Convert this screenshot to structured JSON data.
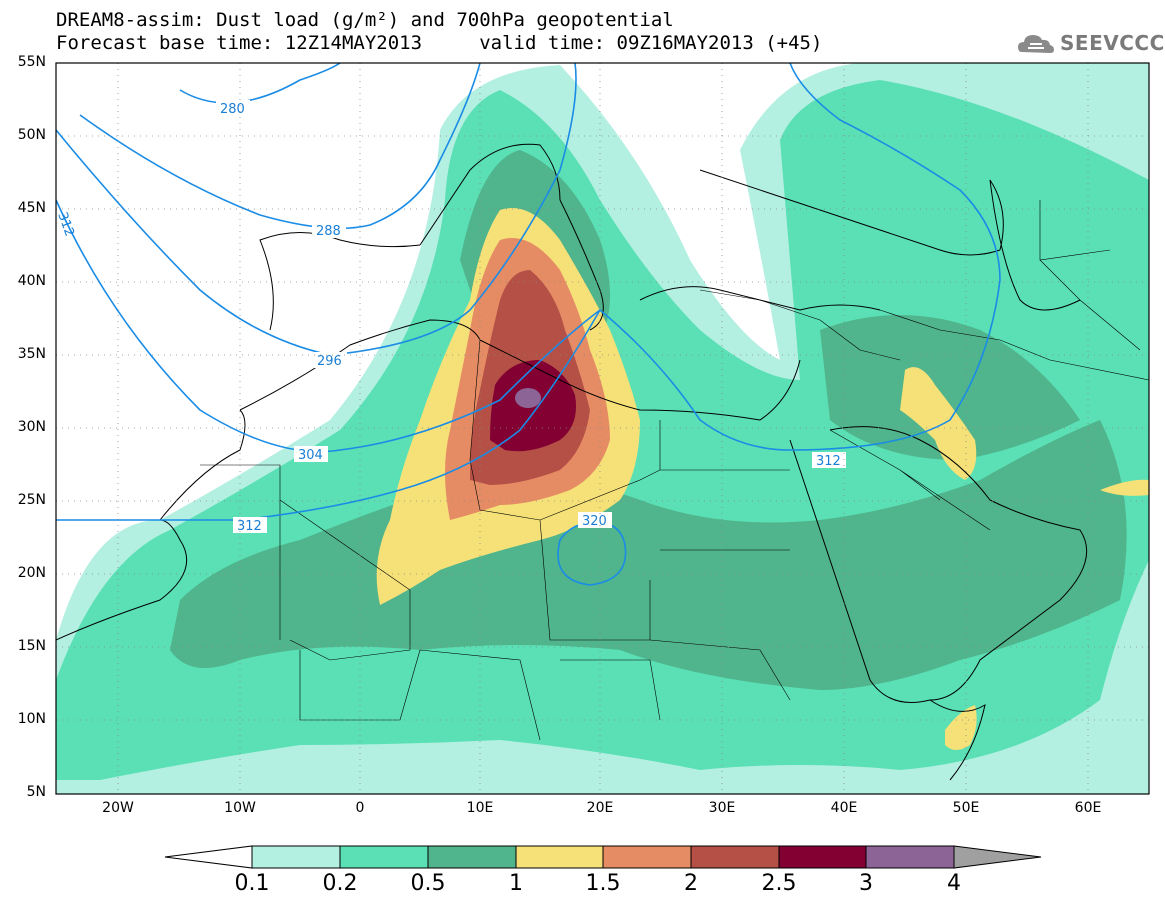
{
  "header": {
    "title_line1": "DREAM8-assim: Dust load (g/m²) and 700hPa geopotential",
    "title_line2": "Forecast base time: 12Z14MAY2013     valid time: 09Z16MAY2013 (+45)"
  },
  "logo": {
    "text": "SEEVCCC",
    "icon": "cloud-logo-icon"
  },
  "map": {
    "lat_labels": [
      "55N",
      "50N",
      "45N",
      "40N",
      "35N",
      "30N",
      "25N",
      "20N",
      "15N",
      "10N",
      "5N"
    ],
    "lon_labels": [
      "20W",
      "10W",
      "0",
      "10E",
      "20E",
      "30E",
      "40E",
      "50E",
      "60E"
    ],
    "contour_labels": [
      "280",
      "288",
      "296",
      "304",
      "312",
      "312",
      "312",
      "320"
    ]
  },
  "colorbar": {
    "ticks": [
      "0.1",
      "0.2",
      "0.5",
      "1",
      "1.5",
      "2",
      "2.5",
      "3",
      "4"
    ],
    "colors": [
      "#b4f0e1",
      "#5ae0b4",
      "#50b48c",
      "#f5e178",
      "#e68c64",
      "#b45046",
      "#820032",
      "#8c6496"
    ],
    "under_color": "#ffffff",
    "over_color": "#a0a0a0"
  }
}
